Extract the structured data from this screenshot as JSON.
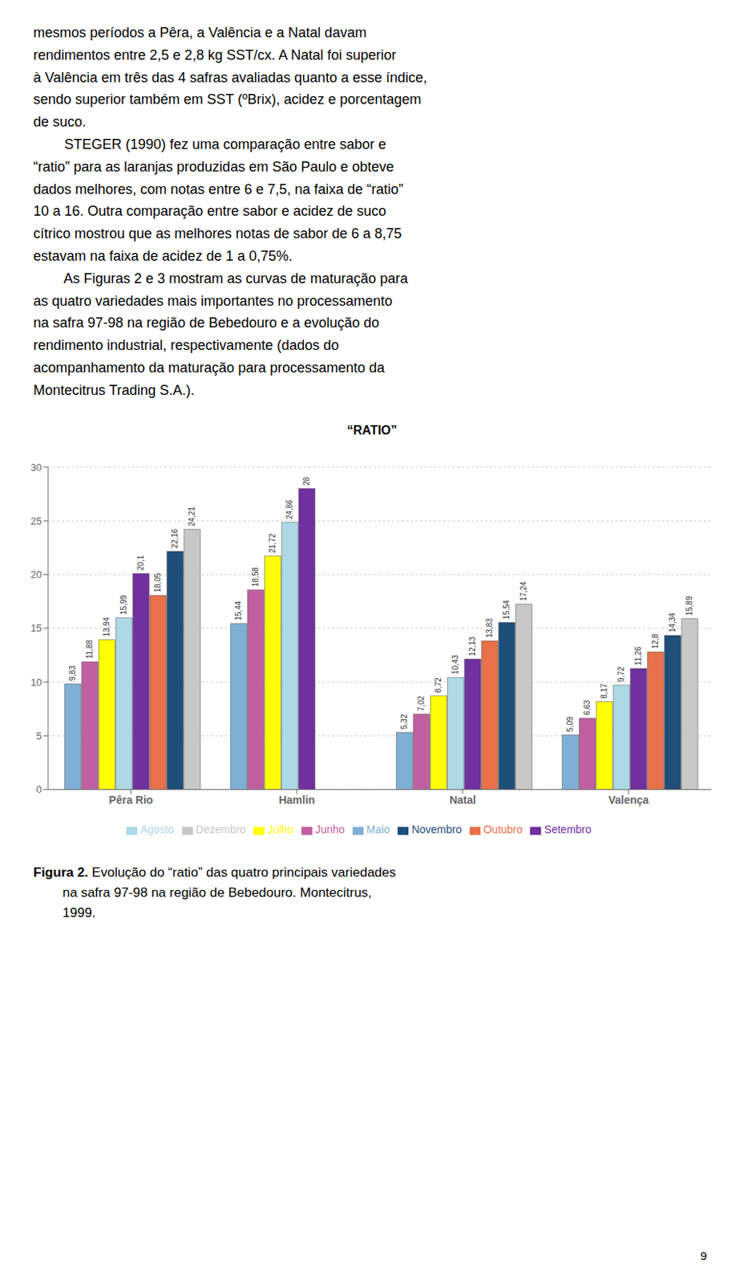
{
  "chart_data": {
    "type": "bar",
    "title": "“RATIO”",
    "categories": [
      "Pêra Rio",
      "Hamlin",
      "Natal",
      "Valença"
    ],
    "series": [
      {
        "name": "Maio",
        "color": "#7fafd4",
        "values": [
          9.83,
          15.44,
          5.32,
          5.09
        ],
        "value_labels": [
          "9,83",
          "15,44",
          "5,32",
          "5,09"
        ]
      },
      {
        "name": "Junho",
        "color": "#c060a0",
        "values": [
          11.88,
          18.58,
          7.02,
          6.63
        ],
        "value_labels": [
          "11,88",
          "18,58",
          "7,02",
          "6,63"
        ]
      },
      {
        "name": "Julho",
        "color": "#ffff00",
        "values": [
          13.94,
          21.72,
          8.72,
          8.17
        ],
        "value_labels": [
          "13,94",
          "21,72",
          "8,72",
          "8,17"
        ]
      },
      {
        "name": "Agosto",
        "color": "#add8e6",
        "values": [
          15.99,
          24.86,
          10.43,
          9.72
        ],
        "value_labels": [
          "15,99",
          "24,86",
          "10,43",
          "9,72"
        ]
      },
      {
        "name": "Setembro",
        "color": "#7030a0",
        "values": [
          20.1,
          28.0,
          12.13,
          11.26
        ],
        "value_labels": [
          "20,1",
          "28",
          "12,13",
          "11,26"
        ]
      },
      {
        "name": "Outubro",
        "color": "#e8704a",
        "values": [
          18.05,
          null,
          13.83,
          12.8
        ],
        "value_labels": [
          "18,05",
          null,
          "13,83",
          "12,8"
        ]
      },
      {
        "name": "Novembro",
        "color": "#1f4e79",
        "values": [
          22.16,
          null,
          15.54,
          14.34
        ],
        "value_labels": [
          "22,16",
          null,
          "15,54",
          "14,34"
        ]
      },
      {
        "name": "Dezembro",
        "color": "#c8c8c8",
        "values": [
          24.21,
          null,
          17.24,
          15.89
        ],
        "value_labels": [
          "24,21",
          null,
          "17,24",
          "15,89"
        ]
      }
    ],
    "ylim": [
      0,
      30
    ],
    "yticks": [
      0,
      5,
      10,
      15,
      20,
      25,
      30
    ],
    "grid": true,
    "legend": "bottom",
    "data_labels": true,
    "annotations": [
      "mesmos períodos a Pêra, a Valência e a Natal davam\nrendimentos entre 2,5 e 2,8 kg SST/cx. A Natal foi superior\nà Valência em três das 4 safras avaliadas quanto a esse índice,\nsendo superior também em SST (ºBrix), acidez e porcentagem\nde suco.\n        STEGER (1990) fez uma comparação entre sabor e\n“ratio” para as laranjas produzidas em São Paulo e obteve\ndados melhores, com notas entre 6 e 7,5, na faixa de “ratio”\n10 a 16. Outra comparação entre sabor e acidez de suco\ncítrico mostrou que as melhores notas de sabor de 6 a 8,75\nestavam na faixa de acidez de 1 a 0,75%.\n        As Figuras 2 e 3 mostram as curvas de maturação para\nas quatro variedades mais importantes no processamento\nna safra 97-98 na região de Bebedouro e a evolução do\nrendimento industrial, respectivamente (dados do\nacompanhamento da maturação para processamento da\nMontecitrus Trading S.A.).",
      "Figura 2.",
      " Evolução do “ratio” das quatro principais variedades\n        na safra 97-98 na região de Bebedouro. Montecitrus,\n        1999.",
      "9"
    ]
  }
}
